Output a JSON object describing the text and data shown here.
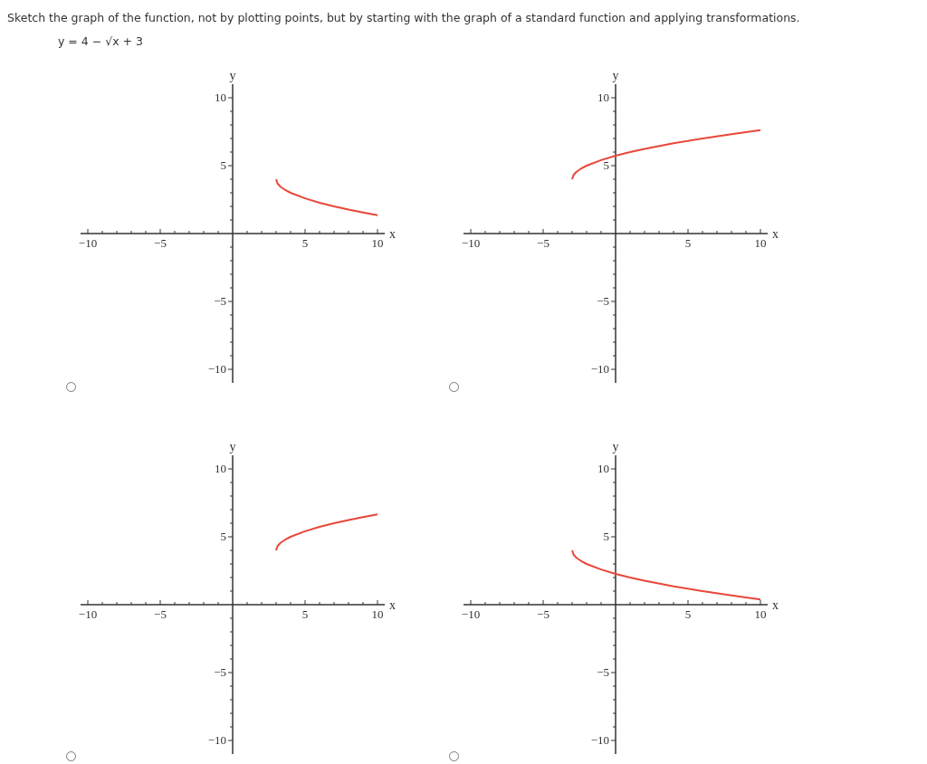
{
  "chart_data": [
    {
      "type": "line",
      "title": "Sketch the graph of the function, not by plotting points, but by starting with the graph of a standard function and applying transformations.",
      "subtitle": "y = 4 − √x + 3",
      "xlabel": "x",
      "ylabel": "y",
      "xlim": [
        -10.5,
        10.5
      ],
      "ylim": [
        -11,
        11
      ],
      "xticks": [
        -10,
        {
          "value": -9,
          "label": null
        },
        {
          "value": -8,
          "label": null
        },
        {
          "value": -7,
          "label": null
        },
        {
          "value": -6,
          "label": null
        },
        -5,
        {
          "value": -4,
          "label": null
        },
        {
          "value": -3,
          "label": null
        },
        {
          "value": -2,
          "label": null
        },
        {
          "value": -1,
          "label": null
        },
        {
          "value": 1,
          "label": null
        },
        {
          "value": 2,
          "label": null
        },
        {
          "value": 3,
          "label": null
        },
        {
          "value": 4,
          "label": null
        },
        5,
        {
          "value": 6,
          "label": null
        },
        {
          "value": 7,
          "label": null
        },
        {
          "value": 8,
          "label": null
        },
        {
          "value": 9,
          "label": null
        },
        10
      ],
      "yticks": [
        -10,
        {
          "value": -9,
          "label": null
        },
        {
          "value": -8,
          "label": null
        },
        {
          "value": -7,
          "label": null
        },
        {
          "value": -6,
          "label": null
        },
        -5,
        {
          "value": -4,
          "label": null
        },
        {
          "value": -3,
          "label": null
        },
        {
          "value": -2,
          "label": null
        },
        {
          "value": -1,
          "label": null
        },
        {
          "value": 1,
          "label": null
        },
        {
          "value": 2,
          "label": null
        },
        {
          "value": 3,
          "label": null
        },
        {
          "value": 4,
          "label": null
        },
        5,
        {
          "value": 6,
          "label": null
        },
        {
          "value": 7,
          "label": null
        },
        {
          "value": 8,
          "label": null
        },
        {
          "value": 9,
          "label": null
        },
        10
      ],
      "grid": false,
      "legend": false,
      "marker": "none",
      "series": [
        {
          "color": "#e8473a",
          "x": [
            3,
            3.1,
            3.3,
            3.6,
            4,
            5,
            6,
            7,
            8,
            9,
            10
          ],
          "values": [
            4,
            3.68,
            3.45,
            3.23,
            3,
            2.59,
            2.27,
            2,
            1.76,
            1.55,
            1.35
          ]
        }
      ]
    },
    {
      "type": "line",
      "xlabel": "x",
      "ylabel": "y",
      "xlim": [
        -10.5,
        10.5
      ],
      "ylim": [
        -11,
        11
      ],
      "xticks": [
        -10,
        {
          "value": -9,
          "label": null
        },
        {
          "value": -8,
          "label": null
        },
        {
          "value": -7,
          "label": null
        },
        {
          "value": -6,
          "label": null
        },
        -5,
        {
          "value": -4,
          "label": null
        },
        {
          "value": -3,
          "label": null
        },
        {
          "value": -2,
          "label": null
        },
        {
          "value": -1,
          "label": null
        },
        {
          "value": 1,
          "label": null
        },
        {
          "value": 2,
          "label": null
        },
        {
          "value": 3,
          "label": null
        },
        {
          "value": 4,
          "label": null
        },
        5,
        {
          "value": 6,
          "label": null
        },
        {
          "value": 7,
          "label": null
        },
        {
          "value": 8,
          "label": null
        },
        {
          "value": 9,
          "label": null
        },
        10
      ],
      "yticks": [
        -10,
        {
          "value": -9,
          "label": null
        },
        {
          "value": -8,
          "label": null
        },
        {
          "value": -7,
          "label": null
        },
        {
          "value": -6,
          "label": null
        },
        -5,
        {
          "value": -4,
          "label": null
        },
        {
          "value": -3,
          "label": null
        },
        {
          "value": -2,
          "label": null
        },
        {
          "value": -1,
          "label": null
        },
        {
          "value": 1,
          "label": null
        },
        {
          "value": 2,
          "label": null
        },
        {
          "value": 3,
          "label": null
        },
        {
          "value": 4,
          "label": null
        },
        5,
        {
          "value": 6,
          "label": null
        },
        {
          "value": 7,
          "label": null
        },
        {
          "value": 8,
          "label": null
        },
        {
          "value": 9,
          "label": null
        },
        10
      ],
      "grid": false,
      "legend": false,
      "marker": "none",
      "series": [
        {
          "color": "#e8473a",
          "x": [
            -3,
            -2.9,
            -2.7,
            -2.4,
            -2,
            -1,
            0,
            1,
            2,
            4,
            6,
            8,
            10
          ],
          "values": [
            4,
            4.32,
            4.55,
            4.77,
            5,
            5.41,
            5.73,
            6,
            6.24,
            6.65,
            7,
            7.32,
            7.61
          ]
        }
      ]
    },
    {
      "type": "line",
      "xlabel": "x",
      "ylabel": "y",
      "xlim": [
        -10.5,
        10.5
      ],
      "ylim": [
        -11,
        11
      ],
      "xticks": [
        -10,
        {
          "value": -9,
          "label": null
        },
        {
          "value": -8,
          "label": null
        },
        {
          "value": -7,
          "label": null
        },
        {
          "value": -6,
          "label": null
        },
        -5,
        {
          "value": -4,
          "label": null
        },
        {
          "value": -3,
          "label": null
        },
        {
          "value": -2,
          "label": null
        },
        {
          "value": -1,
          "label": null
        },
        {
          "value": 1,
          "label": null
        },
        {
          "value": 2,
          "label": null
        },
        {
          "value": 3,
          "label": null
        },
        {
          "value": 4,
          "label": null
        },
        5,
        {
          "value": 6,
          "label": null
        },
        {
          "value": 7,
          "label": null
        },
        {
          "value": 8,
          "label": null
        },
        {
          "value": 9,
          "label": null
        },
        10
      ],
      "yticks": [
        -10,
        {
          "value": -9,
          "label": null
        },
        {
          "value": -8,
          "label": null
        },
        {
          "value": -7,
          "label": null
        },
        {
          "value": -6,
          "label": null
        },
        -5,
        {
          "value": -4,
          "label": null
        },
        {
          "value": -3,
          "label": null
        },
        {
          "value": -2,
          "label": null
        },
        {
          "value": -1,
          "label": null
        },
        {
          "value": 1,
          "label": null
        },
        {
          "value": 2,
          "label": null
        },
        {
          "value": 3,
          "label": null
        },
        {
          "value": 4,
          "label": null
        },
        5,
        {
          "value": 6,
          "label": null
        },
        {
          "value": 7,
          "label": null
        },
        {
          "value": 8,
          "label": null
        },
        {
          "value": 9,
          "label": null
        },
        10
      ],
      "grid": false,
      "legend": false,
      "marker": "none",
      "series": [
        {
          "color": "#e8473a",
          "x": [
            3,
            3.1,
            3.3,
            3.6,
            4,
            5,
            6,
            7,
            8,
            9,
            10
          ],
          "values": [
            4,
            4.32,
            4.55,
            4.77,
            5,
            5.41,
            5.73,
            6,
            6.24,
            6.45,
            6.65
          ]
        }
      ]
    },
    {
      "type": "line",
      "xlabel": "x",
      "ylabel": "y",
      "xlim": [
        -10.5,
        10.5
      ],
      "ylim": [
        -11,
        11
      ],
      "xticks": [
        -10,
        {
          "value": -9,
          "label": null
        },
        {
          "value": -8,
          "label": null
        },
        {
          "value": -7,
          "label": null
        },
        {
          "value": -6,
          "label": null
        },
        -5,
        {
          "value": -4,
          "label": null
        },
        {
          "value": -3,
          "label": null
        },
        {
          "value": -2,
          "label": null
        },
        {
          "value": -1,
          "label": null
        },
        {
          "value": 1,
          "label": null
        },
        {
          "value": 2,
          "label": null
        },
        {
          "value": 3,
          "label": null
        },
        {
          "value": 4,
          "label": null
        },
        5,
        {
          "value": 6,
          "label": null
        },
        {
          "value": 7,
          "label": null
        },
        {
          "value": 8,
          "label": null
        },
        {
          "value": 9,
          "label": null
        },
        10
      ],
      "yticks": [
        -10,
        {
          "value": -9,
          "label": null
        },
        {
          "value": -8,
          "label": null
        },
        {
          "value": -7,
          "label": null
        },
        {
          "value": -6,
          "label": null
        },
        -5,
        {
          "value": -4,
          "label": null
        },
        {
          "value": -3,
          "label": null
        },
        {
          "value": -2,
          "label": null
        },
        {
          "value": -1,
          "label": null
        },
        {
          "value": 1,
          "label": null
        },
        {
          "value": 2,
          "label": null
        },
        {
          "value": 3,
          "label": null
        },
        {
          "value": 4,
          "label": null
        },
        5,
        {
          "value": 6,
          "label": null
        },
        {
          "value": 7,
          "label": null
        },
        {
          "value": 8,
          "label": null
        },
        {
          "value": 9,
          "label": null
        },
        10
      ],
      "grid": false,
      "legend": false,
      "marker": "none",
      "series": [
        {
          "color": "#e8473a",
          "x": [
            -3,
            -2.9,
            -2.7,
            -2.4,
            -2,
            -1,
            0,
            1,
            2,
            4,
            6,
            8,
            10
          ],
          "values": [
            4,
            3.68,
            3.45,
            3.23,
            3,
            2.59,
            2.27,
            2,
            1.76,
            1.35,
            1,
            0.68,
            0.39
          ]
        }
      ]
    }
  ]
}
